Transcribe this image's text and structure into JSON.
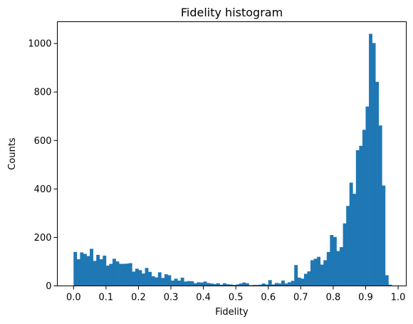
{
  "chart_data": {
    "type": "bar",
    "title": "Fidelity histogram",
    "xlabel": "Fidelity",
    "ylabel": "Counts",
    "xlim": [
      -0.05,
      1.025
    ],
    "ylim": [
      0,
      1090
    ],
    "grid": false,
    "bar_color": "#1f77b4",
    "bin_width": 0.01,
    "bin_start": 0.0,
    "x_ticks": [
      "0.0",
      "0.1",
      "0.2",
      "0.3",
      "0.4",
      "0.5",
      "0.6",
      "0.7",
      "0.8",
      "0.9",
      "1.0"
    ],
    "x_tick_values": [
      0.0,
      0.1,
      0.2,
      0.3,
      0.4,
      0.5,
      0.6,
      0.7,
      0.8,
      0.9,
      1.0
    ],
    "y_ticks": [
      "0",
      "200",
      "400",
      "600",
      "800",
      "1000"
    ],
    "y_tick_values": [
      0,
      200,
      400,
      600,
      800,
      1000
    ],
    "values": [
      140,
      110,
      138,
      132,
      123,
      153,
      103,
      128,
      110,
      125,
      84,
      91,
      112,
      101,
      91,
      91,
      92,
      94,
      59,
      71,
      65,
      51,
      74,
      58,
      40,
      35,
      56,
      33,
      48,
      44,
      22,
      30,
      22,
      34,
      18,
      20,
      19,
      11,
      15,
      14,
      18,
      12,
      10,
      8,
      11,
      5,
      11,
      7,
      6,
      4,
      6,
      10,
      14,
      11,
      3,
      4,
      4,
      5,
      10,
      6,
      24,
      6,
      12,
      10,
      22,
      10,
      15,
      21,
      86,
      34,
      30,
      50,
      60,
      106,
      112,
      120,
      88,
      106,
      140,
      210,
      202,
      144,
      160,
      258,
      330,
      426,
      380,
      560,
      578,
      644,
      740,
      1040,
      1002,
      842,
      662,
      414,
      44,
      5,
      0,
      0
    ]
  }
}
